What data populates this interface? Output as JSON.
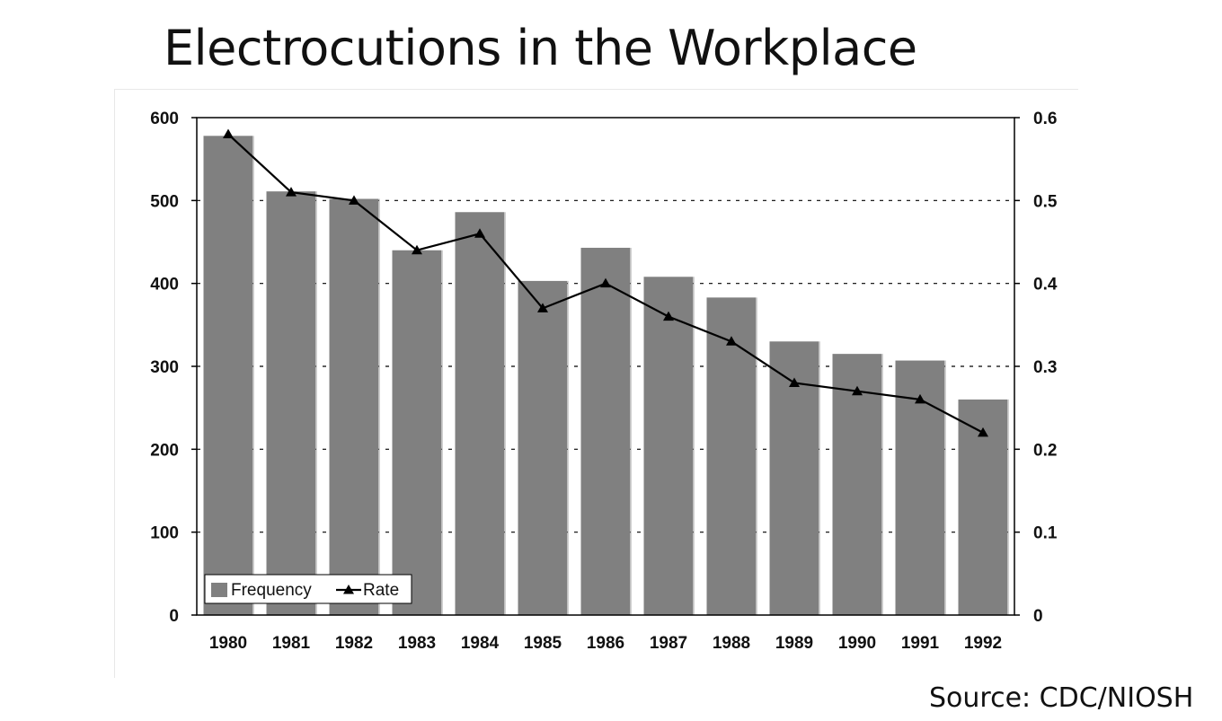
{
  "title": "Electrocutions in the Workplace",
  "source": "Source: CDC/NIOSH",
  "colors": {
    "bar": "#808080",
    "line": "#000000",
    "axis": "#000000",
    "grid": "#000000",
    "background": "#ffffff"
  },
  "chart_data": {
    "type": "bar",
    "title": "Electrocutions in the Workplace",
    "xlabel": "",
    "ylabel": "",
    "categories": [
      "1980",
      "1981",
      "1982",
      "1983",
      "1984",
      "1985",
      "1986",
      "1987",
      "1988",
      "1989",
      "1990",
      "1991",
      "1992"
    ],
    "series": [
      {
        "name": "Frequency",
        "type": "bar",
        "axis": "left",
        "values": [
          578,
          511,
          502,
          440,
          486,
          403,
          443,
          408,
          383,
          330,
          315,
          307,
          260
        ]
      },
      {
        "name": "Rate",
        "type": "line",
        "axis": "right",
        "marker": "triangle",
        "values": [
          0.58,
          0.51,
          0.5,
          0.44,
          0.46,
          0.37,
          0.4,
          0.36,
          0.33,
          0.28,
          0.27,
          0.26,
          0.22
        ]
      }
    ],
    "ylim": [
      0,
      600
    ],
    "y_ticks": [
      "0",
      "100",
      "200",
      "300",
      "400",
      "500",
      "600"
    ],
    "y2lim": [
      0,
      0.6
    ],
    "y2_ticks": [
      "0",
      "0.1",
      "0.2",
      "0.3",
      "0.4",
      "0.5",
      "0.6"
    ],
    "grid": "horizontal dotted",
    "legend_position": "bottom-left"
  }
}
